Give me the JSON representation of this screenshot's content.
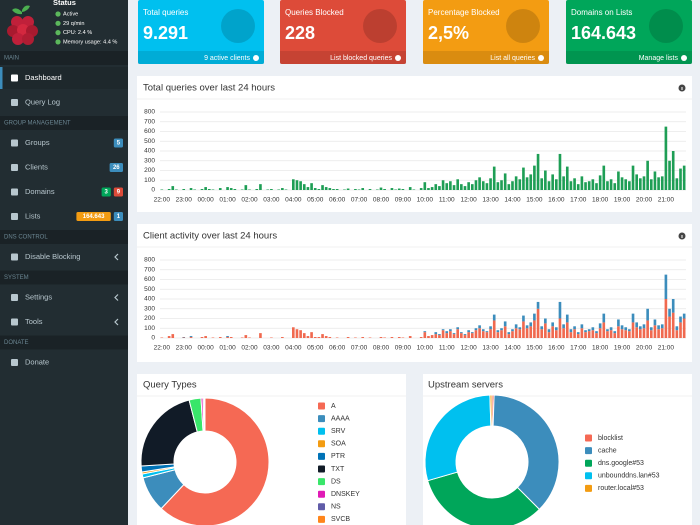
{
  "sidebar": {
    "status": {
      "title": "Status",
      "items": [
        "Active",
        "29 q/min",
        "CPU: 2.4 %",
        "Memory usage: 4.4 %"
      ]
    },
    "sections": [
      {
        "title": "MAIN",
        "items": [
          {
            "label": "Dashboard"
          },
          {
            "label": "Query Log"
          }
        ]
      },
      {
        "title": "GROUP MANAGEMENT",
        "items": [
          {
            "label": "Groups",
            "badges": [
              {
                "text": "5",
                "color": "#3c8dbc"
              }
            ]
          },
          {
            "label": "Clients",
            "badges": [
              {
                "text": "26",
                "color": "#3c8dbc"
              }
            ]
          },
          {
            "label": "Domains",
            "badges": [
              {
                "text": "3",
                "color": "#00a65a"
              },
              {
                "text": "9",
                "color": "#dd4b39"
              }
            ]
          },
          {
            "label": "Lists",
            "badges": [
              {
                "text": "164.643",
                "color": "#f39c12"
              },
              {
                "text": "1",
                "color": "#3c8dbc"
              }
            ]
          }
        ]
      },
      {
        "title": "DNS CONTROL",
        "items": [
          {
            "label": "Disable Blocking"
          }
        ]
      },
      {
        "title": "SYSTEM",
        "items": [
          {
            "label": "Settings"
          },
          {
            "label": "Tools"
          }
        ]
      },
      {
        "title": "DONATE",
        "items": [
          {
            "label": "Donate"
          }
        ]
      }
    ]
  },
  "stats": [
    {
      "title": "Total queries",
      "value": "9.291",
      "footer": "9 active clients",
      "color": "#00c0ef"
    },
    {
      "title": "Queries Blocked",
      "value": "228",
      "footer": "List blocked queries",
      "color": "#dd4b39"
    },
    {
      "title": "Percentage Blocked",
      "value": "2,5%",
      "footer": "List all queries",
      "color": "#f39c12"
    },
    {
      "title": "Domains on Lists",
      "value": "164.643",
      "footer": "Manage lists",
      "color": "#00a65a"
    }
  ],
  "chart_data": [
    {
      "type": "bar",
      "title": "Total queries over last 24 hours",
      "categories": [
        "22:00",
        null,
        null,
        null,
        null,
        null,
        "23:00",
        null,
        null,
        null,
        null,
        null,
        "00:00",
        null,
        null,
        null,
        null,
        null,
        "01:00",
        null,
        null,
        null,
        null,
        null,
        "02:00",
        null,
        null,
        null,
        null,
        null,
        "03:00",
        null,
        null,
        null,
        null,
        null,
        "04:00",
        null,
        null,
        null,
        null,
        null,
        "05:00",
        null,
        null,
        null,
        null,
        null,
        "06:00",
        null,
        null,
        null,
        null,
        null,
        "07:00",
        null,
        null,
        null,
        null,
        null,
        "08:00",
        null,
        null,
        null,
        null,
        null,
        "09:00",
        null,
        null,
        null,
        null,
        null,
        "10:00",
        null,
        null,
        null,
        null,
        null,
        "11:00",
        null,
        null,
        null,
        null,
        null,
        "12:00",
        null,
        null,
        null,
        null,
        null,
        "13:00",
        null,
        null,
        null,
        null,
        null,
        "14:00",
        null,
        null,
        null,
        null,
        null,
        "15:00",
        null,
        null,
        null,
        null,
        null,
        "16:00",
        null,
        null,
        null,
        null,
        null,
        "17:00",
        null,
        null,
        null,
        null,
        null,
        "18:00",
        null,
        null,
        null,
        null,
        null,
        "19:00",
        null,
        null,
        null,
        null,
        null,
        "20:00",
        null,
        null,
        null,
        null,
        null,
        "21:00",
        null,
        null,
        null,
        null,
        null
      ],
      "series": [
        {
          "color": "#1e9e55",
          "values": [
            5,
            0,
            10,
            40,
            5,
            0,
            10,
            0,
            20,
            5,
            0,
            10,
            30,
            10,
            5,
            0,
            20,
            0,
            30,
            20,
            10,
            0,
            5,
            50,
            5,
            0,
            10,
            60,
            0,
            5,
            10,
            0,
            5,
            20,
            5,
            0,
            110,
            100,
            90,
            60,
            30,
            70,
            20,
            10,
            50,
            30,
            20,
            10,
            10,
            0,
            5,
            15,
            0,
            10,
            5,
            20,
            0,
            10,
            0,
            5,
            25,
            10,
            0,
            20,
            5,
            15,
            10,
            0,
            30,
            5,
            0,
            20,
            80,
            20,
            30,
            60,
            40,
            100,
            70,
            90,
            50,
            110,
            60,
            40,
            80,
            60,
            100,
            130,
            90,
            70,
            120,
            240,
            80,
            100,
            170,
            60,
            90,
            140,
            110,
            230,
            130,
            160,
            250,
            370,
            120,
            200,
            90,
            160,
            110,
            370,
            140,
            240,
            90,
            120,
            60,
            140,
            80,
            90,
            110,
            70,
            150,
            250,
            90,
            110,
            70,
            190,
            130,
            110,
            90,
            250,
            160,
            120,
            140,
            300,
            110,
            190,
            130,
            140,
            650,
            300,
            400,
            120,
            220,
            250
          ]
        }
      ],
      "ylim": [
        0,
        800
      ],
      "yticks": [
        0,
        100,
        200,
        300,
        400,
        500,
        600,
        700,
        800
      ],
      "grid": true
    },
    {
      "type": "bar",
      "title": "Client activity over last 24 hours",
      "categories": [
        "22:00",
        null,
        null,
        null,
        null,
        null,
        "23:00",
        null,
        null,
        null,
        null,
        null,
        "00:00",
        null,
        null,
        null,
        null,
        null,
        "01:00",
        null,
        null,
        null,
        null,
        null,
        "02:00",
        null,
        null,
        null,
        null,
        null,
        "03:00",
        null,
        null,
        null,
        null,
        null,
        "04:00",
        null,
        null,
        null,
        null,
        null,
        "05:00",
        null,
        null,
        null,
        null,
        null,
        "06:00",
        null,
        null,
        null,
        null,
        null,
        "07:00",
        null,
        null,
        null,
        null,
        null,
        "08:00",
        null,
        null,
        null,
        null,
        null,
        "09:00",
        null,
        null,
        null,
        null,
        null,
        "10:00",
        null,
        null,
        null,
        null,
        null,
        "11:00",
        null,
        null,
        null,
        null,
        null,
        "12:00",
        null,
        null,
        null,
        null,
        null,
        "13:00",
        null,
        null,
        null,
        null,
        null,
        "14:00",
        null,
        null,
        null,
        null,
        null,
        "15:00",
        null,
        null,
        null,
        null,
        null,
        "16:00",
        null,
        null,
        null,
        null,
        null,
        "17:00",
        null,
        null,
        null,
        null,
        null,
        "18:00",
        null,
        null,
        null,
        null,
        null,
        "19:00",
        null,
        null,
        null,
        null,
        null,
        "20:00",
        null,
        null,
        null,
        null,
        null,
        "21:00",
        null,
        null,
        null,
        null,
        null
      ],
      "series": [
        {
          "color": "#f0694f",
          "values": [
            5,
            0,
            20,
            40,
            0,
            0,
            5,
            0,
            10,
            0,
            0,
            10,
            20,
            0,
            5,
            0,
            10,
            0,
            10,
            10,
            0,
            0,
            5,
            30,
            5,
            0,
            0,
            50,
            0,
            0,
            5,
            0,
            0,
            10,
            0,
            0,
            110,
            90,
            80,
            50,
            20,
            60,
            10,
            10,
            40,
            20,
            10,
            0,
            5,
            0,
            0,
            10,
            0,
            5,
            0,
            10,
            0,
            5,
            0,
            0,
            10,
            5,
            0,
            10,
            0,
            10,
            5,
            0,
            20,
            0,
            0,
            10,
            60,
            20,
            30,
            40,
            30,
            80,
            50,
            70,
            40,
            90,
            50,
            30,
            60,
            50,
            80,
            100,
            70,
            60,
            90,
            180,
            60,
            80,
            120,
            40,
            70,
            100,
            90,
            170,
            100,
            120,
            180,
            300,
            90,
            150,
            60,
            120,
            80,
            200,
            100,
            160,
            60,
            90,
            40,
            100,
            60,
            70,
            80,
            50,
            100,
            160,
            70,
            80,
            50,
            120,
            90,
            80,
            70,
            160,
            110,
            90,
            100,
            180,
            80,
            130,
            90,
            100,
            400,
            220,
            260,
            80,
            160,
            200
          ]
        },
        {
          "color": "#3c8dbc",
          "values": [
            0,
            0,
            0,
            0,
            0,
            0,
            5,
            0,
            10,
            0,
            0,
            0,
            0,
            0,
            0,
            0,
            0,
            0,
            10,
            0,
            0,
            0,
            0,
            0,
            0,
            0,
            0,
            0,
            0,
            0,
            0,
            0,
            0,
            0,
            0,
            0,
            0,
            0,
            0,
            0,
            0,
            0,
            0,
            0,
            0,
            0,
            0,
            0,
            0,
            0,
            0,
            0,
            0,
            0,
            0,
            0,
            0,
            0,
            0,
            0,
            0,
            0,
            0,
            0,
            0,
            0,
            0,
            0,
            0,
            0,
            0,
            0,
            10,
            0,
            0,
            20,
            10,
            10,
            20,
            20,
            10,
            20,
            10,
            10,
            20,
            10,
            20,
            30,
            20,
            10,
            30,
            60,
            20,
            20,
            50,
            20,
            20,
            40,
            20,
            60,
            30,
            40,
            70,
            70,
            30,
            50,
            30,
            40,
            30,
            170,
            40,
            80,
            30,
            30,
            20,
            40,
            20,
            20,
            30,
            20,
            50,
            90,
            20,
            30,
            20,
            70,
            40,
            30,
            20,
            90,
            50,
            30,
            40,
            120,
            30,
            60,
            40,
            40,
            250,
            80,
            140,
            40,
            60,
            50
          ]
        }
      ],
      "ylim": [
        0,
        800
      ],
      "yticks": [
        0,
        100,
        200,
        300,
        400,
        500,
        600,
        700,
        800
      ],
      "grid": true
    },
    {
      "type": "doughnut",
      "title": "Query Types",
      "categories": [
        "A",
        "AAAA",
        "SRV",
        "SOA",
        "PTR",
        "TXT",
        "DS",
        "DNSKEY",
        "NS",
        "SVCB"
      ],
      "values": [
        62,
        9,
        1,
        0.5,
        1.5,
        22,
        3,
        0.5,
        0.3,
        0.2
      ],
      "colors": [
        "#f56954",
        "#3c8dbc",
        "#00c0ef",
        "#f39c12",
        "#0073b7",
        "#111b27",
        "#39e66a",
        "#e01ab5",
        "#605ca8",
        "#ff851b"
      ]
    },
    {
      "type": "doughnut",
      "title": "Upstream servers",
      "categories": [
        "blocklist",
        "cache",
        "dns.google#53",
        "unbounddns.lan#53",
        "router.local#53"
      ],
      "values": [
        0.5,
        37,
        33,
        29,
        0.5
      ],
      "colors": [
        "#f56954",
        "#3c8dbc",
        "#00a65a",
        "#00c0ef",
        "#f39c12"
      ]
    }
  ]
}
